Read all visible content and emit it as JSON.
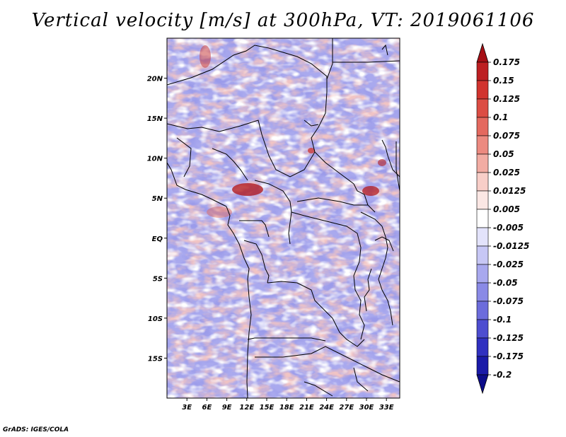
{
  "title": "Vertical velocity [m/s] at 300hPa, VT: 2019061106",
  "credit": "GrADS: IGES/COLA",
  "map": {
    "lon_range": [
      0,
      35
    ],
    "lat_range": [
      -20,
      25
    ],
    "lon_ticks": [
      "3E",
      "6E",
      "9E",
      "12E",
      "15E",
      "18E",
      "21E",
      "24E",
      "27E",
      "30E",
      "33E"
    ],
    "lat_ticks": [
      "20N",
      "15N",
      "10N",
      "5N",
      "EQ",
      "5S",
      "10S",
      "15S"
    ]
  },
  "colorbar": {
    "levels": [
      "0.175",
      "0.15",
      "0.125",
      "0.1",
      "0.075",
      "0.05",
      "0.025",
      "0.0125",
      "0.005",
      "-0.005",
      "-0.0125",
      "-0.025",
      "-0.05",
      "-0.075",
      "-0.1",
      "-0.125",
      "-0.175",
      "-0.2"
    ],
    "colors": [
      "#a50f15",
      "#bd1f22",
      "#d1332e",
      "#dc4d44",
      "#e4695f",
      "#ec8a80",
      "#f2aca3",
      "#f8cec8",
      "#fbe7e4",
      "#ffffff",
      "#e3e3fb",
      "#c7c7f5",
      "#a8a8ee",
      "#8a8ae6",
      "#6c6cdc",
      "#4d4dd0",
      "#3030c0",
      "#1a1aa8",
      "#0c0c8a"
    ]
  }
}
